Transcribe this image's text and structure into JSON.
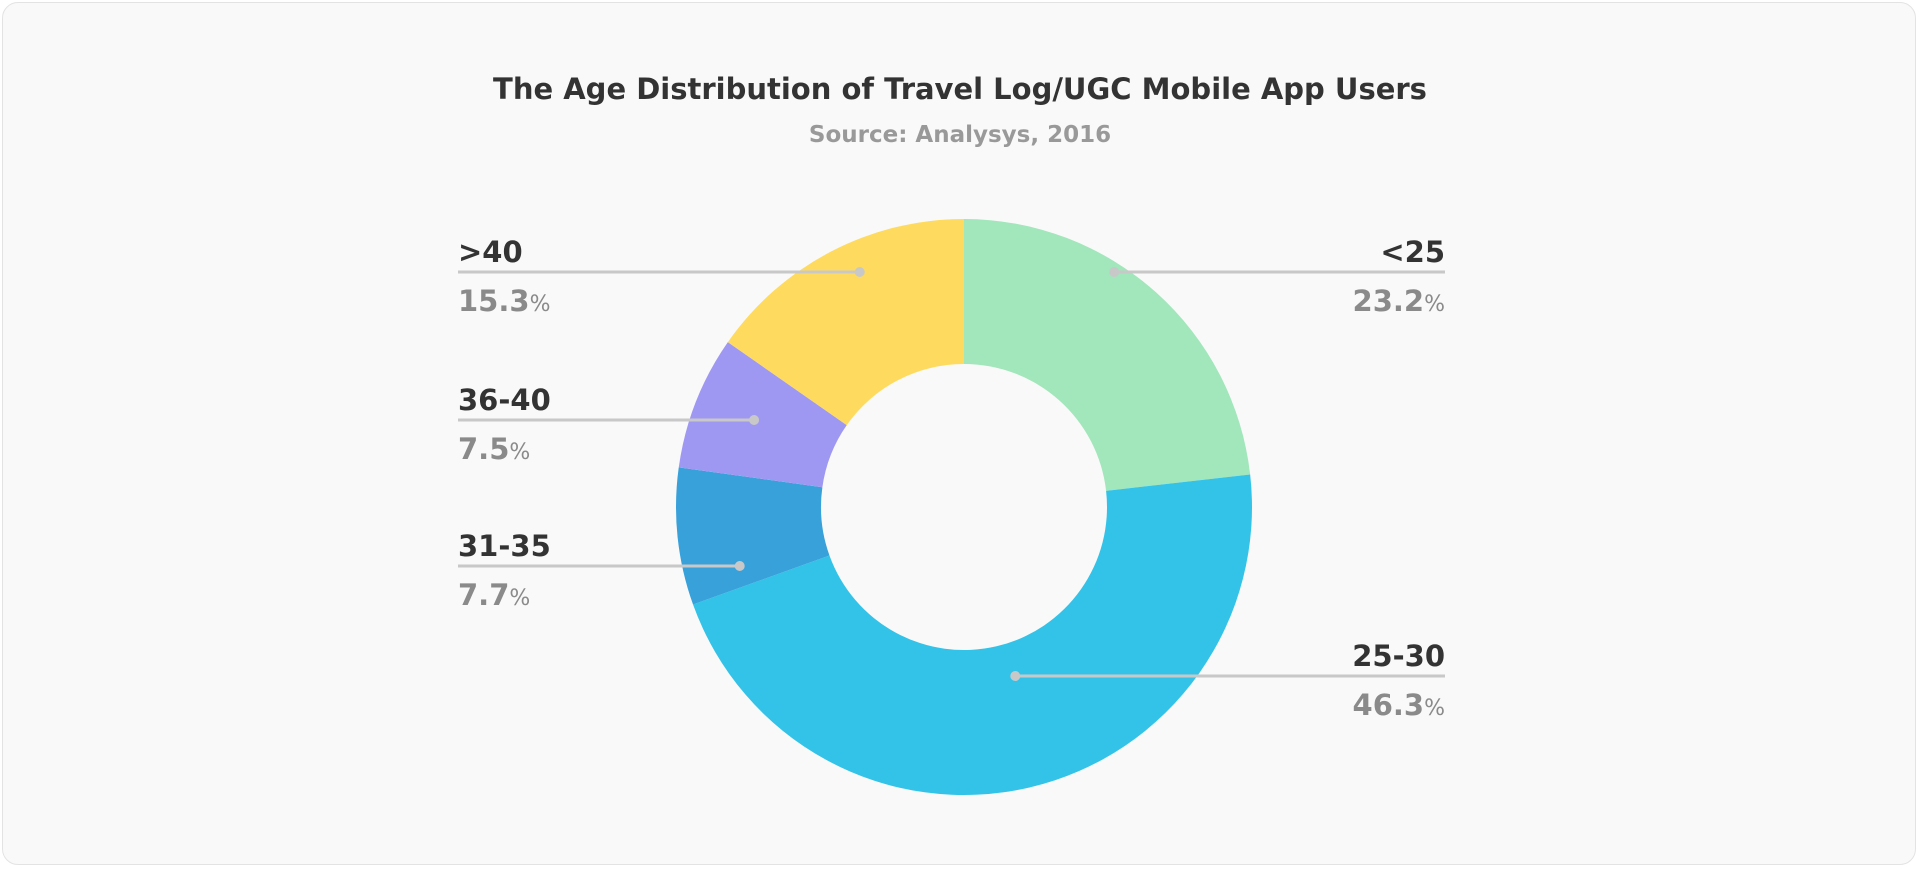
{
  "chart_data": {
    "type": "pie",
    "donut": true,
    "title": "The Age Distribution of Travel Log/UGC Mobile App Users",
    "subtitle": "Source: Analysys, 2016",
    "unit": "%",
    "slices": [
      {
        "label": "<25",
        "value": 23.2,
        "display": "23.2",
        "color": "#a2e6bb",
        "side": "right"
      },
      {
        "label": "25-30",
        "value": 46.3,
        "display": "46.3",
        "color": "#33c3e8",
        "side": "right"
      },
      {
        "label": "31-35",
        "value": 7.7,
        "display": "7.7",
        "color": "#38a1da",
        "side": "left"
      },
      {
        "label": "36-40",
        "value": 7.5,
        "display": "7.5",
        "color": "#9f98f3",
        "side": "left"
      },
      {
        "label": ">40",
        "value": 15.3,
        "display": "15.3",
        "color": "#fedb5f",
        "side": "left"
      }
    ],
    "legend": "none",
    "grid": false
  }
}
